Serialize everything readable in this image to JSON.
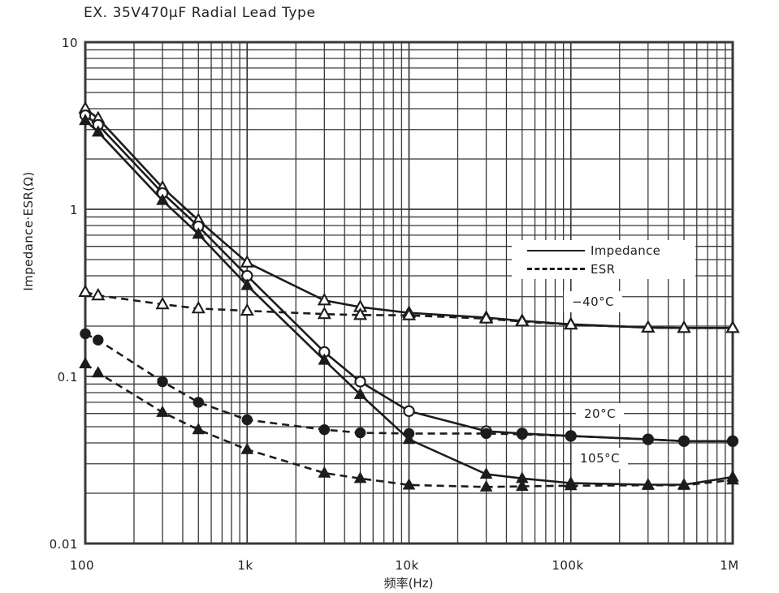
{
  "title": "EX. 35V470μF Radial Lead Type",
  "colors": {
    "ink": "#1c1c1c",
    "grid": "#383838",
    "background": "#ffffff"
  },
  "chart_data": {
    "type": "line",
    "title": "EX. 35V470μF Radial Lead Type",
    "x_scale": "log",
    "y_scale": "log",
    "grid": true,
    "x_axis": {
      "label": "频率(Hz)",
      "ticks": [
        "100",
        "1k",
        "10k",
        "100k",
        "1M"
      ],
      "range": [
        100,
        1000000
      ]
    },
    "y_axis": {
      "label": "Impedance·ESR(Ω)",
      "ticks": [
        "10",
        "1",
        "0.1",
        "0.01"
      ],
      "range": [
        0.01,
        10
      ]
    },
    "x": [
      100,
      120,
      300,
      500,
      1000,
      3000,
      5000,
      10000,
      30000,
      50000,
      100000,
      300000,
      500000,
      1000000
    ],
    "series": [
      {
        "name": "ESR −40°C",
        "quantity": "ESR",
        "temperature": "−40°C",
        "line": "dashed",
        "marker": "triangle-open",
        "values": [
          0.32,
          0.305,
          0.27,
          0.255,
          0.247,
          0.236,
          0.233,
          0.232,
          0.222,
          0.213,
          0.204,
          0.196,
          0.195,
          0.195
        ]
      },
      {
        "name": "ESR 20°C",
        "quantity": "ESR",
        "temperature": "20°C",
        "line": "dashed",
        "marker": "circle-filled",
        "values": [
          0.18,
          0.165,
          0.093,
          0.07,
          0.055,
          0.048,
          0.046,
          0.0455,
          0.0455,
          0.045,
          0.044,
          0.042,
          0.041,
          0.041
        ]
      },
      {
        "name": "ESR 105°C",
        "quantity": "ESR",
        "temperature": "105°C",
        "line": "dashed",
        "marker": "triangle-filled",
        "values": [
          0.119,
          0.105,
          0.061,
          0.048,
          0.0365,
          0.0264,
          0.0245,
          0.0224,
          0.0218,
          0.022,
          0.0222,
          0.0223,
          0.0223,
          0.024
        ]
      },
      {
        "name": "Impedance −40°C",
        "quantity": "Impedance",
        "temperature": "−40°C",
        "line": "solid",
        "marker": "triangle-open",
        "values": [
          4.0,
          3.5,
          1.35,
          0.86,
          0.48,
          0.285,
          0.26,
          0.24,
          0.225,
          0.215,
          0.205,
          0.196,
          0.195,
          0.195
        ]
      },
      {
        "name": "Impedance 20°C",
        "quantity": "Impedance",
        "temperature": "20°C",
        "line": "solid",
        "marker": "circle-open",
        "values": [
          3.65,
          3.2,
          1.25,
          0.79,
          0.4,
          0.14,
          0.093,
          0.062,
          0.047,
          0.0455,
          0.044,
          0.042,
          0.041,
          0.041
        ]
      },
      {
        "name": "Impedance 105°C",
        "quantity": "Impedance",
        "temperature": "105°C",
        "line": "solid",
        "marker": "triangle-filled",
        "values": [
          3.4,
          2.9,
          1.13,
          0.71,
          0.35,
          0.125,
          0.078,
          0.042,
          0.026,
          0.0245,
          0.023,
          0.0225,
          0.0225,
          0.025
        ]
      }
    ],
    "legend": {
      "position": "inside-upper-right",
      "items": [
        {
          "label": "Impedance",
          "line": "solid"
        },
        {
          "label": "ESR",
          "line": "dashed"
        }
      ]
    },
    "curve_labels": [
      {
        "text": "−40°C"
      },
      {
        "text": "20°C"
      },
      {
        "text": "105°C"
      }
    ]
  }
}
